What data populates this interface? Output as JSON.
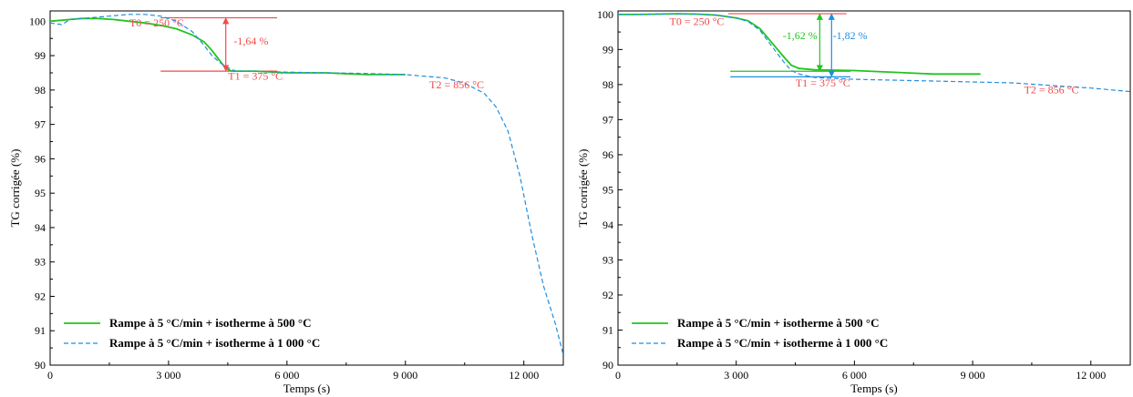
{
  "colors": {
    "green": "#22c41f",
    "blue": "#1f8ee0",
    "red": "#f04a4a",
    "axis": "#000000"
  },
  "chart_data": [
    {
      "type": "line",
      "xlabel": "Temps (s)",
      "ylabel": "TG corrigée (%)",
      "xlim": [
        0,
        13000
      ],
      "ylim": [
        90,
        100.3
      ],
      "xticks": [
        0,
        3000,
        6000,
        9000,
        12000
      ],
      "xtick_labels": [
        "0",
        "3 000",
        "6 000",
        "9 000",
        "12 000"
      ],
      "yticks": [
        90,
        91,
        92,
        93,
        94,
        95,
        96,
        97,
        98,
        99,
        100
      ],
      "ytick_labels": [
        "90",
        "91",
        "92",
        "93",
        "94",
        "95",
        "96",
        "97",
        "98",
        "99",
        "100"
      ],
      "legend_position": "bottom-left",
      "series": [
        {
          "name": "Rampe à 5 °C/min + isotherme à 500 °C",
          "style": "solid",
          "color": "#22c41f",
          "x": [
            0,
            300,
            500,
            800,
            1200,
            1600,
            2000,
            2400,
            2800,
            3200,
            3600,
            3900,
            4100,
            4300,
            4400,
            4500,
            4600,
            4800,
            5200,
            6000,
            7000,
            8000,
            9000
          ],
          "y": [
            100.0,
            100.03,
            100.05,
            100.08,
            100.08,
            100.05,
            100.0,
            99.95,
            99.88,
            99.78,
            99.6,
            99.4,
            99.15,
            98.85,
            98.7,
            98.6,
            98.55,
            98.55,
            98.55,
            98.5,
            98.5,
            98.45,
            98.45
          ]
        },
        {
          "name": "Rampe à 5 °C/min + isotherme à 1 000 °C",
          "style": "dashed",
          "color": "#1f8ee0",
          "x": [
            0,
            300,
            500,
            1000,
            1500,
            2000,
            2400,
            2800,
            3200,
            3600,
            3900,
            4100,
            4300,
            4500,
            4700,
            5000,
            6000,
            7000,
            8000,
            9000,
            10000,
            10500,
            11000,
            11300,
            11600,
            11900,
            12200,
            12500,
            12800,
            13000
          ],
          "y": [
            99.95,
            99.9,
            100.05,
            100.1,
            100.15,
            100.2,
            100.2,
            100.15,
            100.0,
            99.7,
            99.3,
            99.0,
            98.8,
            98.65,
            98.55,
            98.55,
            98.52,
            98.5,
            98.48,
            98.45,
            98.35,
            98.2,
            97.9,
            97.5,
            96.8,
            95.5,
            93.8,
            92.3,
            91.2,
            90.3
          ]
        }
      ],
      "annotations": [
        {
          "text": "T0 = 250 °C",
          "color": "#f04a4a",
          "x": 2700,
          "y": 99.85,
          "anchor": "middle"
        },
        {
          "text": "T1 = 375 °C",
          "color": "#f04a4a",
          "x": 5200,
          "y": 98.3,
          "anchor": "middle"
        },
        {
          "text": "T2 = 856 °C",
          "color": "#f04a4a",
          "x": 10300,
          "y": 98.05,
          "anchor": "middle"
        },
        {
          "text": "-1,64 %",
          "color": "#f04a4a",
          "x": 4650,
          "y": 99.32,
          "anchor": "start"
        }
      ],
      "reference_lines": [
        {
          "x1": 2800,
          "x2": 5750,
          "y": 100.1,
          "color": "#f04a4a"
        },
        {
          "x1": 2800,
          "x2": 5750,
          "y": 98.55,
          "color": "#f04a4a"
        }
      ],
      "arrows": [
        {
          "x": 4450,
          "y1": 100.1,
          "y2": 98.55,
          "color": "#f04a4a"
        }
      ]
    },
    {
      "type": "line",
      "xlabel": "Temps (s)",
      "ylabel": "TG corrigée (%)",
      "xlim": [
        0,
        13000
      ],
      "ylim": [
        90,
        100.1
      ],
      "xticks": [
        0,
        3000,
        6000,
        9000,
        12000
      ],
      "xtick_labels": [
        "0",
        "3 000",
        "6 000",
        "9 000",
        "12 000"
      ],
      "yticks": [
        90,
        91,
        92,
        93,
        94,
        95,
        96,
        97,
        98,
        99,
        100
      ],
      "ytick_labels": [
        "90",
        "91",
        "92",
        "93",
        "94",
        "95",
        "96",
        "97",
        "98",
        "99",
        "100"
      ],
      "legend_position": "bottom-left",
      "series": [
        {
          "name": "Rampe à 5 °C/min + isotherme à 500 °C",
          "style": "solid",
          "color": "#22c41f",
          "x": [
            0,
            500,
            1000,
            1500,
            2000,
            2500,
            3000,
            3300,
            3600,
            3900,
            4200,
            4400,
            4600,
            5000,
            6000,
            7000,
            8000,
            9200
          ],
          "y": [
            100.0,
            100.0,
            100.01,
            100.02,
            100.01,
            99.98,
            99.9,
            99.82,
            99.6,
            99.2,
            98.8,
            98.55,
            98.46,
            98.42,
            98.4,
            98.35,
            98.3,
            98.3
          ]
        },
        {
          "name": "Rampe à 5 °C/min + isotherme à 1 000 °C",
          "style": "dashed",
          "color": "#1f8ee0",
          "x": [
            0,
            500,
            1000,
            1500,
            2000,
            2500,
            3000,
            3300,
            3600,
            3900,
            4200,
            4400,
            4600,
            4800,
            5000,
            6000,
            8000,
            10000,
            12000,
            13000
          ],
          "y": [
            100.0,
            100.0,
            100.01,
            100.02,
            100.01,
            99.98,
            99.9,
            99.8,
            99.55,
            99.1,
            98.65,
            98.4,
            98.3,
            98.25,
            98.2,
            98.15,
            98.1,
            98.05,
            97.9,
            97.8
          ]
        }
      ],
      "annotations": [
        {
          "text": "T0 = 250 °C",
          "color": "#f04a4a",
          "x": 2000,
          "y": 99.7,
          "anchor": "middle"
        },
        {
          "text": "T1 = 375 °C",
          "color": "#f04a4a",
          "x": 5200,
          "y": 97.95,
          "anchor": "middle"
        },
        {
          "text": "T2 = 856 °C",
          "color": "#f04a4a",
          "x": 11000,
          "y": 97.75,
          "anchor": "middle"
        },
        {
          "text": "-1,62 %",
          "color": "#22c41f",
          "x": 5060,
          "y": 99.3,
          "anchor": "end"
        },
        {
          "text": "-1,82 %",
          "color": "#1f8ee0",
          "x": 5450,
          "y": 99.3,
          "anchor": "start"
        }
      ],
      "reference_lines": [
        {
          "x1": 2800,
          "x2": 5800,
          "y": 100.02,
          "color": "#f04a4a"
        },
        {
          "x1": 2850,
          "x2": 5900,
          "y": 98.38,
          "color": "#22c41f"
        },
        {
          "x1": 2850,
          "x2": 5900,
          "y": 98.22,
          "color": "#1f8ee0"
        }
      ],
      "arrows": [
        {
          "x": 5120,
          "y1": 100.02,
          "y2": 98.38,
          "color": "#22c41f"
        },
        {
          "x": 5420,
          "y1": 100.02,
          "y2": 98.22,
          "color": "#1f8ee0"
        }
      ]
    }
  ]
}
